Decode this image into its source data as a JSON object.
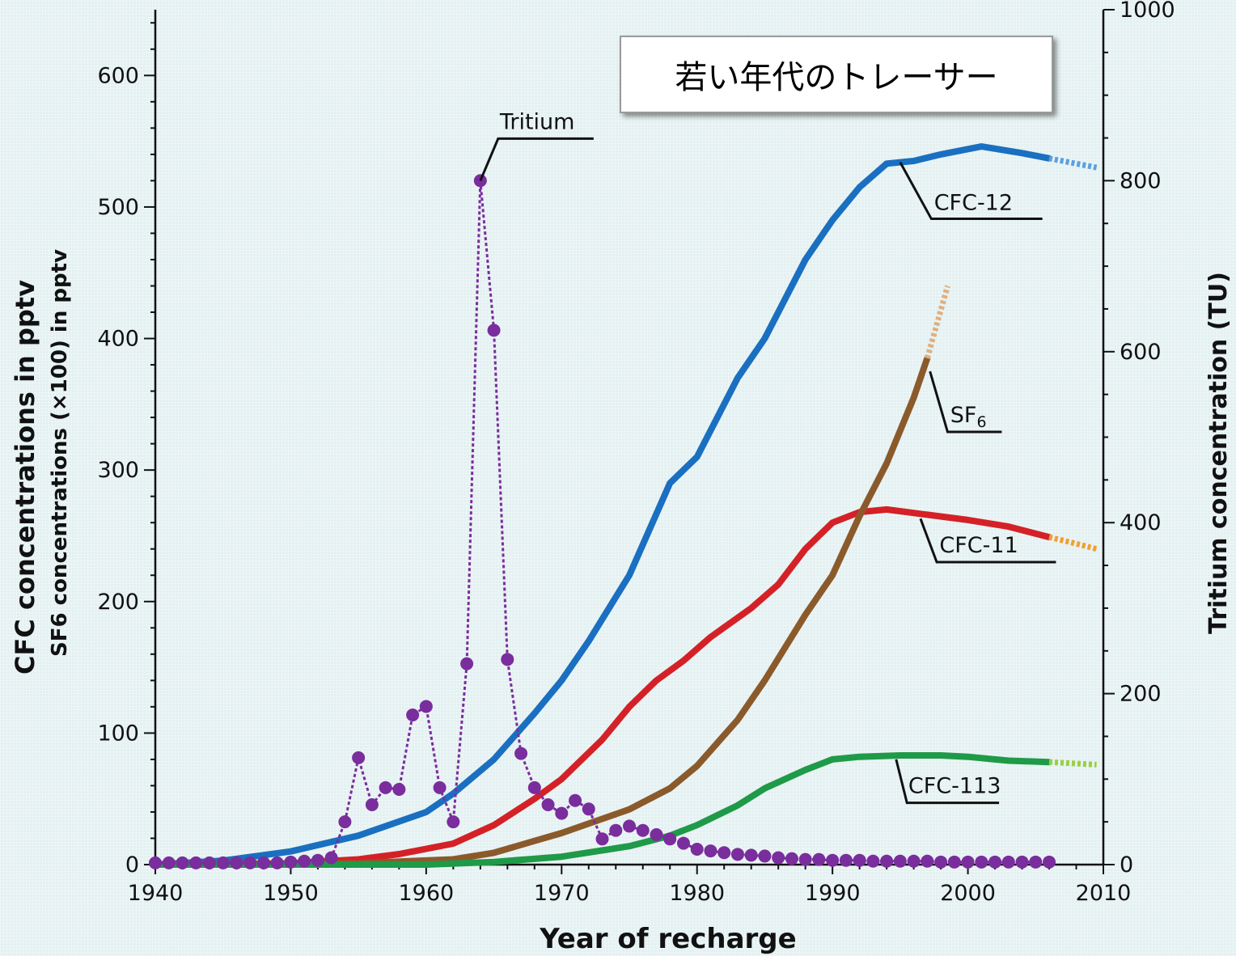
{
  "chart_data": {
    "type": "line",
    "title": "若い年代のトレーサー",
    "xlabel": "Year of recharge",
    "ylabel_left_line1": "CFC concentrations in pptv",
    "ylabel_left_line2": "SF6 concentrations (×100) in pptv",
    "ylabel_right": "Tritium concentration (TU)",
    "xlim": [
      1940,
      2010
    ],
    "ylim_left": [
      0,
      650
    ],
    "ylim_right": [
      0,
      1000
    ],
    "x_ticks": [
      1940,
      1950,
      1960,
      1970,
      1980,
      1990,
      2000,
      2010
    ],
    "y_left_ticks": [
      0,
      100,
      200,
      300,
      400,
      500,
      600
    ],
    "y_right_ticks": [
      0,
      200,
      400,
      600,
      800,
      1000
    ],
    "grid": false,
    "series": [
      {
        "name": "CFC-12",
        "axis": "left",
        "color": "#1a6fc0",
        "x": [
          1940,
          1945,
          1950,
          1955,
          1960,
          1962,
          1965,
          1968,
          1970,
          1972,
          1975,
          1978,
          1980,
          1983,
          1985,
          1988,
          1990,
          1992,
          1994,
          1996,
          1998,
          2001,
          2004,
          2006
        ],
        "y": [
          0,
          3,
          10,
          22,
          40,
          54,
          80,
          115,
          140,
          170,
          220,
          290,
          310,
          370,
          400,
          460,
          490,
          515,
          533,
          535,
          540,
          546,
          541,
          537
        ],
        "ext_x": [
          2006,
          2008,
          2009.5
        ],
        "ext_y": [
          537,
          533,
          530
        ]
      },
      {
        "name": "CFC-11",
        "axis": "left",
        "color": "#d42127",
        "x": [
          1940,
          1950,
          1955,
          1958,
          1962,
          1965,
          1968,
          1970,
          1973,
          1975,
          1977,
          1979,
          1981,
          1984,
          1986,
          1988,
          1990,
          1992,
          1994,
          1997,
          2000,
          2003,
          2006
        ],
        "y": [
          0,
          1,
          4,
          8,
          16,
          30,
          50,
          65,
          95,
          120,
          140,
          155,
          173,
          195,
          213,
          240,
          260,
          268,
          270,
          266,
          262,
          257,
          249
        ],
        "ext_x": [
          2006,
          2008,
          2009.5
        ],
        "ext_y": [
          249,
          244,
          240
        ]
      },
      {
        "name": "SF6",
        "axis": "left",
        "color": "#8b5a2b",
        "x": [
          1940,
          1955,
          1962,
          1965,
          1968,
          1970,
          1975,
          1978,
          1980,
          1983,
          1985,
          1988,
          1990,
          1992,
          1994,
          1996,
          1997
        ],
        "y": [
          0,
          1,
          4,
          9,
          18,
          24,
          42,
          58,
          75,
          110,
          140,
          190,
          220,
          265,
          305,
          355,
          385
        ],
        "ext_x": [
          1997,
          1998.5
        ],
        "ext_y": [
          385,
          440
        ]
      },
      {
        "name": "CFC-113",
        "axis": "left",
        "color": "#1f9a48",
        "x": [
          1940,
          1960,
          1965,
          1970,
          1975,
          1978,
          1980,
          1983,
          1985,
          1988,
          1990,
          1992,
          1995,
          1998,
          2000,
          2003,
          2006
        ],
        "y": [
          0,
          0,
          2,
          6,
          14,
          22,
          30,
          45,
          58,
          72,
          80,
          82,
          83,
          83,
          82,
          79,
          78
        ],
        "ext_x": [
          2006,
          2009.5
        ],
        "ext_y": [
          78,
          76
        ]
      },
      {
        "name": "Tritium",
        "axis": "right",
        "color": "#7a2d9c",
        "x": [
          1940,
          1941,
          1942,
          1943,
          1944,
          1945,
          1946,
          1947,
          1948,
          1949,
          1950,
          1951,
          1952,
          1953,
          1954,
          1955,
          1956,
          1957,
          1958,
          1959,
          1960,
          1961,
          1962,
          1963,
          1964,
          1965,
          1966,
          1967,
          1968,
          1969,
          1970,
          1971,
          1972,
          1973,
          1974,
          1975,
          1976,
          1977,
          1978,
          1979,
          1980,
          1981,
          1982,
          1983,
          1984,
          1985,
          1986,
          1987,
          1988,
          1989,
          1990,
          1991,
          1992,
          1993,
          1994,
          1995,
          1996,
          1997,
          1998,
          1999,
          2000,
          2001,
          2002,
          2003,
          2004,
          2005,
          2006
        ],
        "y": [
          2,
          2,
          2,
          2,
          2,
          2,
          2,
          2,
          2,
          2,
          3,
          4,
          5,
          8,
          50,
          125,
          70,
          90,
          88,
          175,
          185,
          90,
          50,
          235,
          800,
          625,
          240,
          130,
          90,
          70,
          60,
          75,
          65,
          30,
          40,
          45,
          40,
          35,
          30,
          25,
          18,
          16,
          14,
          12,
          11,
          10,
          8,
          7,
          6,
          6,
          5,
          5,
          5,
          4,
          4,
          4,
          4,
          4,
          3,
          3,
          3,
          3,
          3,
          3,
          3,
          3,
          3
        ]
      }
    ]
  }
}
